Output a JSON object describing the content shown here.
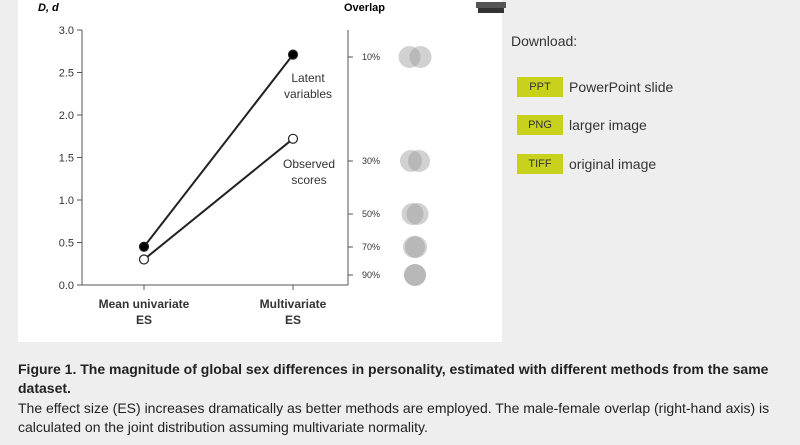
{
  "figure": {
    "y_axis_label": "D, d",
    "overlap_label": "Overlap",
    "y_ticks": [
      "3.0",
      "2.5",
      "2.0",
      "1.5",
      "1.0",
      "0.5",
      "0.0"
    ],
    "x_labels": [
      {
        "line1": "Mean univariate",
        "line2": "ES"
      },
      {
        "line1": "Multivariate",
        "line2": "ES"
      }
    ],
    "annotations": {
      "latent": {
        "line1": "Latent",
        "line2": "variables"
      },
      "observed": {
        "line1": "Observed",
        "line2": "scores"
      }
    },
    "overlap_ticks": [
      "10%",
      "30%",
      "50%",
      "70%",
      "90%"
    ]
  },
  "chart_data": {
    "type": "line",
    "categories": [
      "Mean univariate ES",
      "Multivariate ES"
    ],
    "series": [
      {
        "name": "Latent variables",
        "values": [
          0.45,
          2.71
        ]
      },
      {
        "name": "Observed scores",
        "values": [
          0.3,
          1.72
        ]
      }
    ],
    "ylabel": "D, d",
    "ylim": [
      0,
      3.0
    ],
    "secondary_axis": {
      "label": "Overlap",
      "ticks": [
        "10%",
        "30%",
        "50%",
        "70%",
        "90%"
      ],
      "values": [
        10,
        30,
        50,
        70,
        90
      ]
    },
    "grid": false,
    "colors": {
      "latent": "#000000",
      "observed": "#ffffff",
      "axis": "#555555",
      "circles": "#9a9a9a"
    }
  },
  "download": {
    "title": "Download:",
    "items": [
      {
        "badge": "PPT",
        "label": "PowerPoint slide"
      },
      {
        "badge": "PNG",
        "label": "larger image"
      },
      {
        "badge": "TIFF",
        "label": "original image"
      }
    ]
  },
  "caption": {
    "title": "Figure 1. The magnitude of global sex differences in personality, estimated with different methods from the same dataset.",
    "body": "The effect size (ES) increases dramatically as better methods are employed. The male-female overlap (right-hand axis) is calculated on the joint distribution assuming multivariate normality."
  },
  "colors": {
    "badge": "#c8d21c",
    "page_bg": "#eeeeee"
  }
}
